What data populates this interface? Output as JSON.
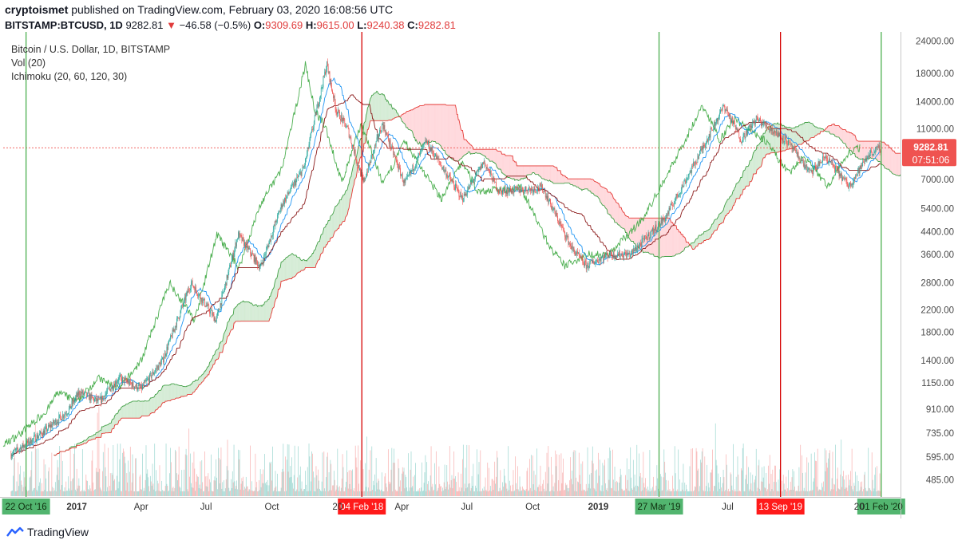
{
  "header": {
    "author": "cryptoismet",
    "published": "published on TradingView.com, February 03, 2020 16:08:56 UTC",
    "symbol": "BITSTAMP:BTCUSD, 1D",
    "last": "9282.81",
    "arrow": "▼",
    "change": "−46.58 (−0.5%)",
    "o_label": "O:",
    "o_value": "9309.69",
    "h_label": "H:",
    "h_value": "9615.00",
    "l_label": "L:",
    "l_value": "9240.38",
    "c_label": "C:",
    "c_value": "9282.81"
  },
  "indicators": {
    "title": "Bitcoin / U.S. Dollar, 1D, BITSTAMP",
    "volume": "Vol (20)",
    "ichimoku": "Ichimoku (20, 60, 120, 30)"
  },
  "brand": {
    "name": "TradingView"
  },
  "colors": {
    "up": "#26a69a",
    "down": "#ef5350",
    "tenkan": "#2196f3",
    "kijun": "#8b1a1a",
    "chikou": "#4caf50",
    "span_a": "#43a047",
    "span_b": "#e53935",
    "cloud_bull": "#c8e6c9",
    "cloud_bear": "#ffcdd2",
    "vline_green": "#4caf50",
    "vline_red": "#d50000",
    "price_tag": "#ef5350"
  },
  "chart_data": {
    "type": "candlestick",
    "scale": "log",
    "ylim": [
      420,
      26000
    ],
    "y_ticks": [
      "24000.00",
      "18000.00",
      "14000.00",
      "11000.00",
      "9282.81",
      "7000.00",
      "5400.00",
      "4400.00",
      "3600.00",
      "2800.00",
      "2200.00",
      "1800.00",
      "1400.00",
      "1150.00",
      "910.00",
      "735.00",
      "595.00",
      "485.00"
    ],
    "x_ticks": [
      "2017",
      "Apr",
      "Jul",
      "Oct",
      "20",
      "Apr",
      "Jul",
      "Oct",
      "2019",
      "Jul",
      "20"
    ],
    "price_marker": {
      "value": "9282.81",
      "countdown": "07:51:06"
    },
    "price_path": [
      [
        "2016-10-01",
        610
      ],
      [
        "2016-11-15",
        740
      ],
      [
        "2016-12-20",
        900
      ],
      [
        "2017-01-05",
        1060
      ],
      [
        "2017-02-01",
        970
      ],
      [
        "2017-03-01",
        1200
      ],
      [
        "2017-04-01",
        1090
      ],
      [
        "2017-05-01",
        1400
      ],
      [
        "2017-06-10",
        2800
      ],
      [
        "2017-07-15",
        2000
      ],
      [
        "2017-08-15",
        4300
      ],
      [
        "2017-09-15",
        3200
      ],
      [
        "2017-10-15",
        5600
      ],
      [
        "2017-11-15",
        7800
      ],
      [
        "2017-12-17",
        19500
      ],
      [
        "2017-12-30",
        13000
      ],
      [
        "2018-01-15",
        11000
      ],
      [
        "2018-02-06",
        6800
      ],
      [
        "2018-03-05",
        11500
      ],
      [
        "2018-04-05",
        6700
      ],
      [
        "2018-05-05",
        9800
      ],
      [
        "2018-06-25",
        5900
      ],
      [
        "2018-07-25",
        8200
      ],
      [
        "2018-08-15",
        6300
      ],
      [
        "2018-10-15",
        6500
      ],
      [
        "2018-11-25",
        3800
      ],
      [
        "2018-12-15",
        3250
      ],
      [
        "2019-01-15",
        3600
      ],
      [
        "2019-02-15",
        3600
      ],
      [
        "2019-04-05",
        5000
      ],
      [
        "2019-05-15",
        8000
      ],
      [
        "2019-06-26",
        13500
      ],
      [
        "2019-07-20",
        10000
      ],
      [
        "2019-08-10",
        12000
      ],
      [
        "2019-09-20",
        10000
      ],
      [
        "2019-10-25",
        7400
      ],
      [
        "2019-11-15",
        8600
      ],
      [
        "2019-12-18",
        6600
      ],
      [
        "2020-01-15",
        8800
      ],
      [
        "2020-02-01",
        9300
      ]
    ],
    "vertical_markers": [
      {
        "label": "22 Oct '16",
        "date": "2016-10-22",
        "color": "green"
      },
      {
        "label": "04 Feb '18",
        "date": "2018-02-04",
        "color": "red"
      },
      {
        "label": "27 Mar '19",
        "date": "2019-03-27",
        "color": "green"
      },
      {
        "label": "13 Sep '19",
        "date": "2019-09-13",
        "color": "red"
      },
      {
        "label": "01 Feb '20",
        "date": "2020-02-01",
        "color": "green"
      }
    ]
  }
}
